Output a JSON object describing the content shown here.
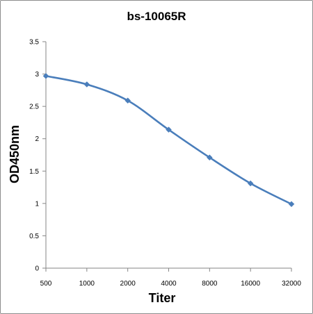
{
  "chart_data": {
    "type": "line",
    "title": "bs-10065R",
    "xlabel": "Titer",
    "ylabel": "OD450nm",
    "categories": [
      "500",
      "1000",
      "2000",
      "4000",
      "8000",
      "16000",
      "32000"
    ],
    "series": [
      {
        "values": [
          2.97,
          2.84,
          2.59,
          2.14,
          1.71,
          1.31,
          0.99
        ]
      }
    ],
    "ylim": [
      0,
      3.5
    ],
    "yticks": [
      "0",
      "0.5",
      "1",
      "1.5",
      "2",
      "2.5",
      "3",
      "3.5"
    ],
    "grid": false,
    "legend": "none",
    "line_color": "#4a7ebb",
    "marker": "diamond"
  }
}
